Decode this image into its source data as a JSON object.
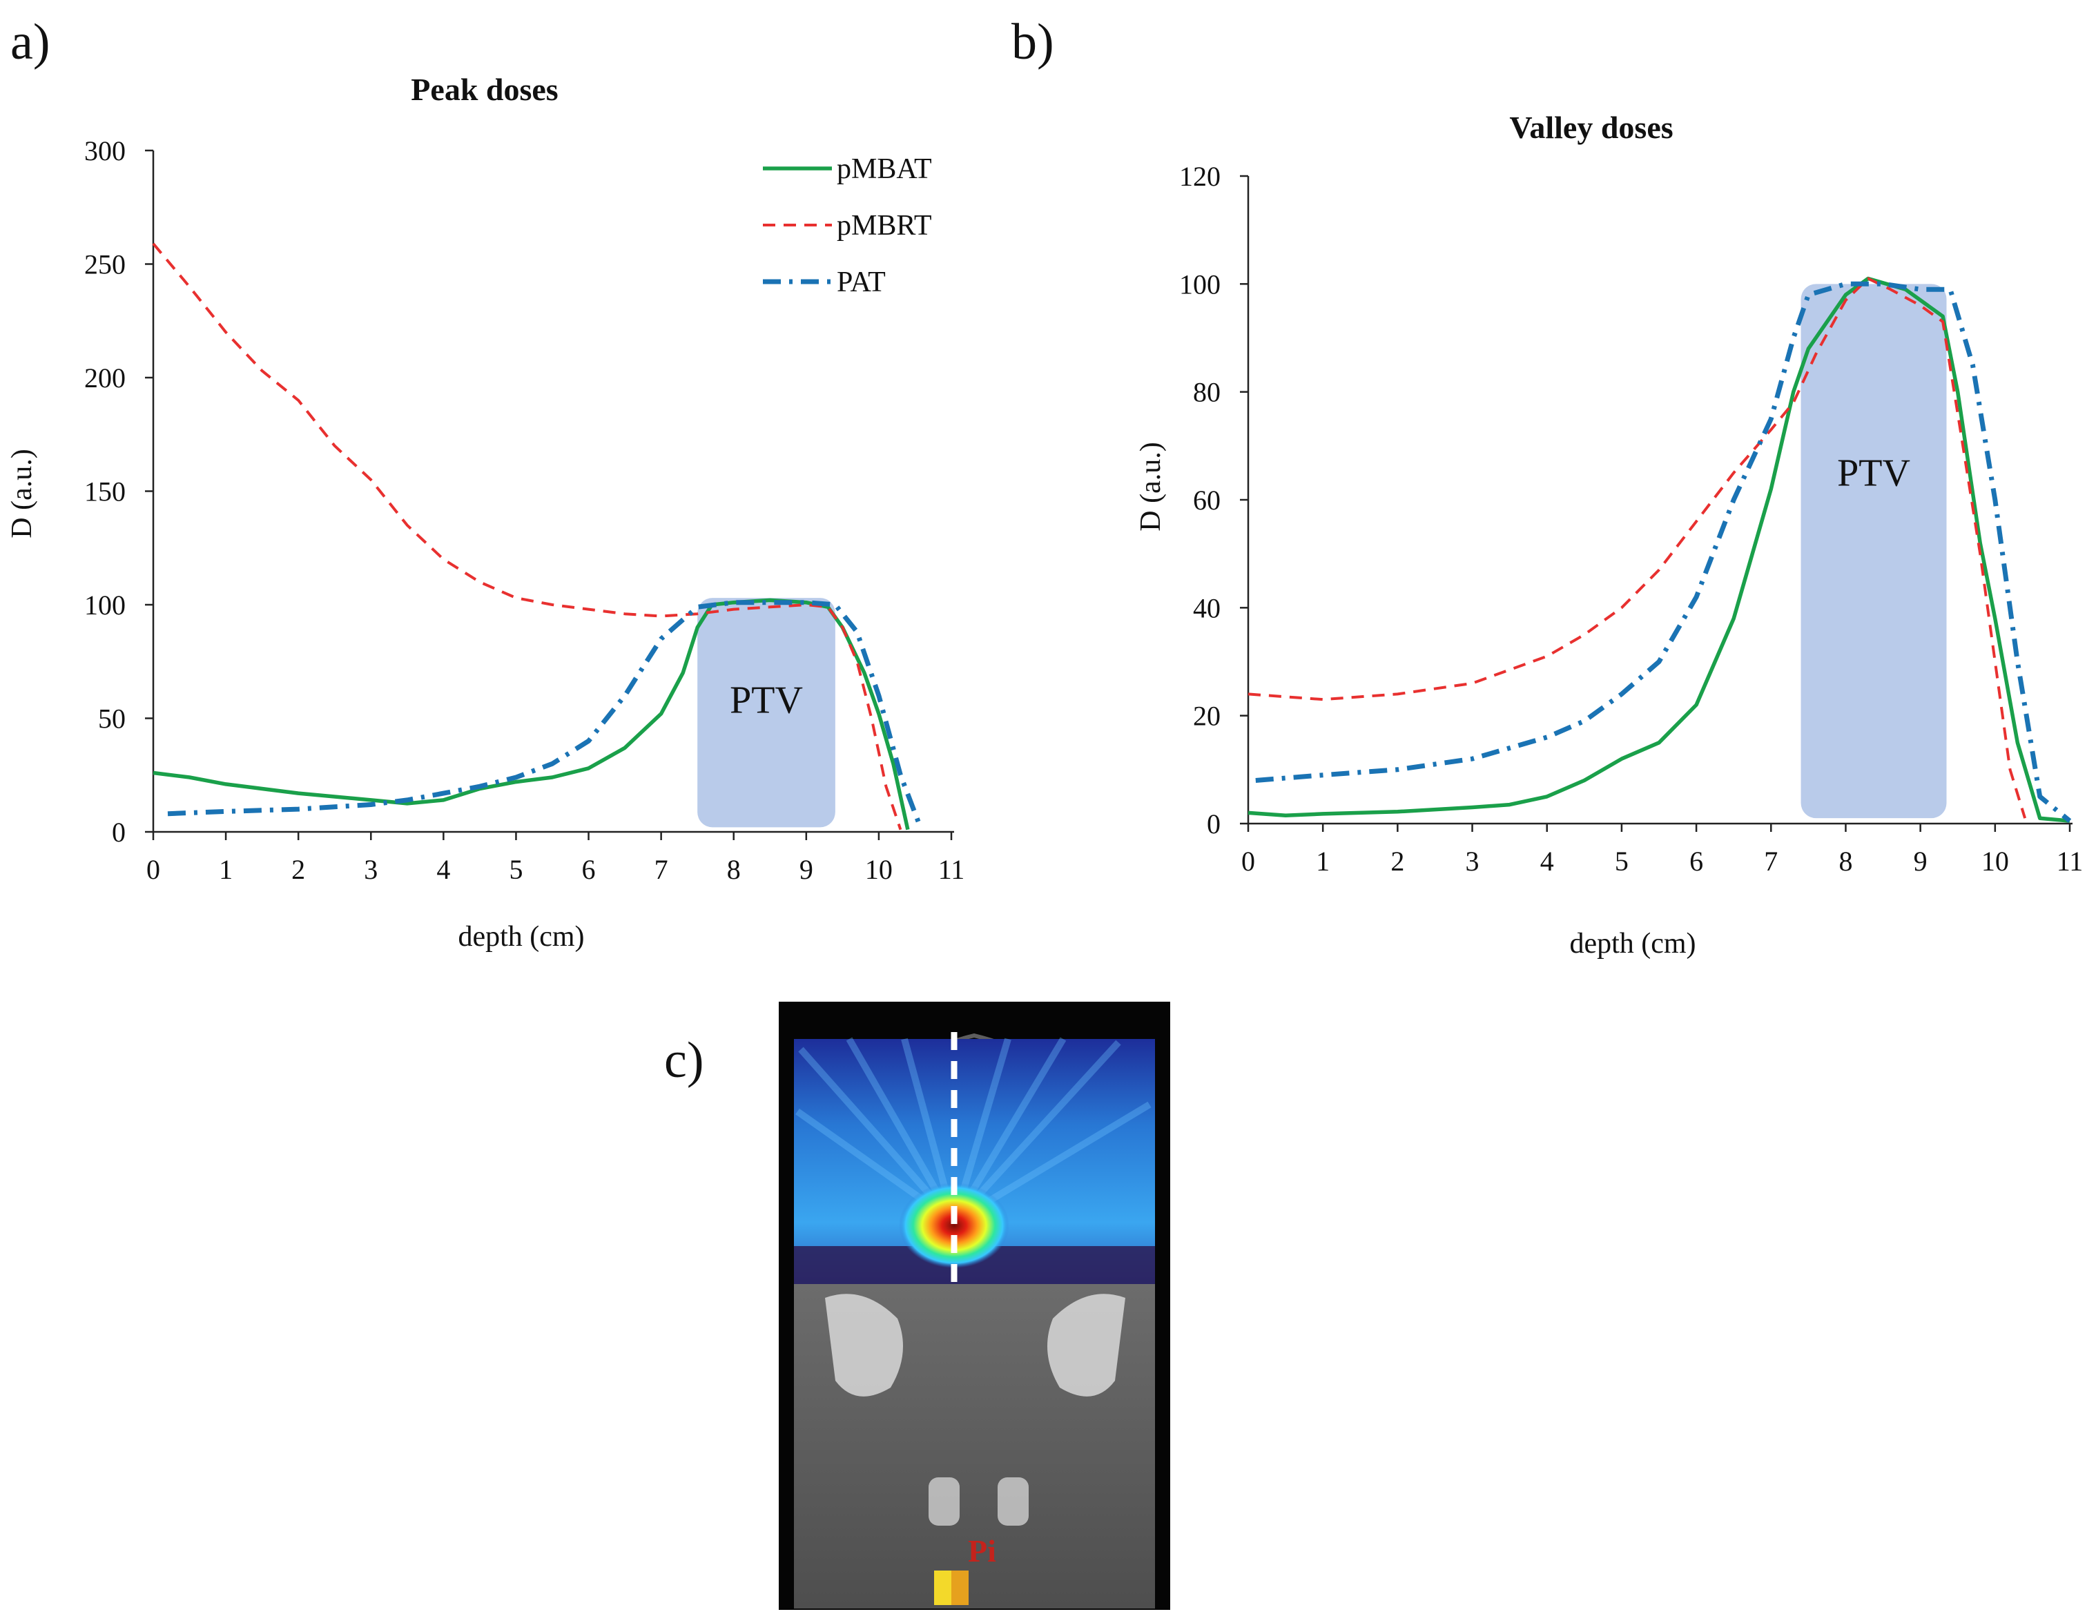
{
  "figure": {
    "panel_labels": [
      "a)",
      "b)",
      "c)"
    ],
    "colors": {
      "pMBAT": "#1aa04a",
      "pMBRT": "#e8302f",
      "PAT": "#1a73b4",
      "ptv_fill": "#b9cbea"
    },
    "ct_image": {
      "overlay_text": "Pi",
      "colors": [
        "#ffffff",
        "#2a7fd8",
        "#38e6ff",
        "#e3ff2b",
        "#e21f12",
        "#8a3b3b",
        "#f3d92a"
      ]
    }
  },
  "chart_data": [
    {
      "type": "line",
      "panel": "a)",
      "title": "Peak doses",
      "xlabel": "depth (cm)",
      "ylabel": "D (a.u.)",
      "xlim": [
        0,
        11
      ],
      "ylim": [
        0,
        300
      ],
      "xticks": [
        "0",
        "1",
        "2",
        "3",
        "4",
        "5",
        "6",
        "7",
        "8",
        "9",
        "10",
        "11"
      ],
      "yticks": [
        "0",
        "50",
        "100",
        "150",
        "200",
        "250",
        "300"
      ],
      "legend": [
        "pMBAT",
        "pMBRT",
        "PAT"
      ],
      "legend_position": "top-right",
      "region": {
        "label": "PTV",
        "x_start": 7.5,
        "x_end": 9.4,
        "y_start": 2,
        "y_end": 103
      },
      "series": [
        {
          "name": "pMBAT",
          "style": "solid",
          "points": [
            [
              0,
              26
            ],
            [
              0.5,
              24
            ],
            [
              1,
              21
            ],
            [
              2,
              17
            ],
            [
              3,
              14
            ],
            [
              3.5,
              12.5
            ],
            [
              4,
              14
            ],
            [
              4.5,
              19
            ],
            [
              5,
              22
            ],
            [
              5.5,
              24
            ],
            [
              6,
              28
            ],
            [
              6.5,
              37
            ],
            [
              7,
              52
            ],
            [
              7.3,
              70
            ],
            [
              7.5,
              90
            ],
            [
              7.7,
              100
            ],
            [
              8,
              101
            ],
            [
              8.5,
              102
            ],
            [
              9,
              101
            ],
            [
              9.3,
              99
            ],
            [
              9.5,
              90
            ],
            [
              9.8,
              70
            ],
            [
              10,
              52
            ],
            [
              10.2,
              30
            ],
            [
              10.4,
              1
            ]
          ]
        },
        {
          "name": "pMBRT",
          "style": "dashed",
          "points": [
            [
              0,
              259
            ],
            [
              0.5,
              240
            ],
            [
              1,
              220
            ],
            [
              1.5,
              203
            ],
            [
              2,
              190
            ],
            [
              2.5,
              170
            ],
            [
              3,
              155
            ],
            [
              3.5,
              135
            ],
            [
              4,
              120
            ],
            [
              4.5,
              110
            ],
            [
              5,
              103
            ],
            [
              5.5,
              100
            ],
            [
              6,
              98
            ],
            [
              6.5,
              96
            ],
            [
              7,
              95
            ],
            [
              7.5,
              96
            ],
            [
              8,
              98
            ],
            [
              8.5,
              99
            ],
            [
              9,
              100
            ],
            [
              9.3,
              99
            ],
            [
              9.5,
              90
            ],
            [
              9.7,
              75
            ],
            [
              9.9,
              50
            ],
            [
              10.1,
              20
            ],
            [
              10.3,
              1
            ]
          ]
        },
        {
          "name": "PAT",
          "style": "dashdot",
          "points": [
            [
              0.2,
              8
            ],
            [
              1,
              9
            ],
            [
              2,
              10
            ],
            [
              3,
              12
            ],
            [
              3.5,
              14
            ],
            [
              4,
              17
            ],
            [
              4.5,
              20
            ],
            [
              5,
              24
            ],
            [
              5.5,
              30
            ],
            [
              6,
              40
            ],
            [
              6.5,
              60
            ],
            [
              7,
              85
            ],
            [
              7.5,
              99
            ],
            [
              8,
              101
            ],
            [
              8.5,
              101
            ],
            [
              9,
              101
            ],
            [
              9.4,
              100
            ],
            [
              9.7,
              88
            ],
            [
              10,
              60
            ],
            [
              10.3,
              25
            ],
            [
              10.55,
              4
            ]
          ]
        }
      ]
    },
    {
      "type": "line",
      "panel": "b)",
      "title": "Valley doses",
      "xlabel": "depth (cm)",
      "ylabel": "D (a.u.)",
      "xlim": [
        0,
        11
      ],
      "ylim": [
        0,
        120
      ],
      "xticks": [
        "0",
        "1",
        "2",
        "3",
        "4",
        "5",
        "6",
        "7",
        "8",
        "9",
        "10",
        "11"
      ],
      "yticks": [
        "0",
        "20",
        "40",
        "60",
        "80",
        "100",
        "120"
      ],
      "region": {
        "label": "PTV",
        "x_start": 7.4,
        "x_end": 9.35,
        "y_start": 1,
        "y_end": 100
      },
      "series": [
        {
          "name": "pMBAT",
          "style": "solid",
          "points": [
            [
              0,
              2
            ],
            [
              0.5,
              1.5
            ],
            [
              1,
              1.8
            ],
            [
              2,
              2.2
            ],
            [
              3,
              3
            ],
            [
              3.5,
              3.5
            ],
            [
              4,
              5
            ],
            [
              4.5,
              8
            ],
            [
              5,
              12
            ],
            [
              5.5,
              15
            ],
            [
              6,
              22
            ],
            [
              6.5,
              38
            ],
            [
              7,
              62
            ],
            [
              7.3,
              80
            ],
            [
              7.5,
              88
            ],
            [
              8,
              98
            ],
            [
              8.3,
              101
            ],
            [
              8.8,
              99
            ],
            [
              9.3,
              94
            ],
            [
              9.5,
              80
            ],
            [
              9.8,
              52
            ],
            [
              10,
              38
            ],
            [
              10.3,
              15
            ],
            [
              10.6,
              1
            ],
            [
              11,
              0.5
            ]
          ]
        },
        {
          "name": "pMBRT",
          "style": "dashed",
          "points": [
            [
              0,
              24
            ],
            [
              1,
              23
            ],
            [
              2,
              24
            ],
            [
              3,
              26
            ],
            [
              4,
              31
            ],
            [
              4.5,
              35
            ],
            [
              5,
              40
            ],
            [
              5.5,
              47
            ],
            [
              6,
              56
            ],
            [
              6.5,
              65
            ],
            [
              7,
              73
            ],
            [
              7.3,
              78
            ],
            [
              7.6,
              87
            ],
            [
              8,
              97
            ],
            [
              8.3,
              101
            ],
            [
              8.6,
              99
            ],
            [
              9,
              96
            ],
            [
              9.3,
              93
            ],
            [
              9.5,
              76
            ],
            [
              9.8,
              50
            ],
            [
              10,
              30
            ],
            [
              10.2,
              10
            ],
            [
              10.4,
              1
            ]
          ]
        },
        {
          "name": "PAT",
          "style": "dashdot",
          "points": [
            [
              0.1,
              8
            ],
            [
              1,
              9
            ],
            [
              2,
              10
            ],
            [
              3,
              12
            ],
            [
              4,
              16
            ],
            [
              4.5,
              19
            ],
            [
              5,
              24
            ],
            [
              5.5,
              30
            ],
            [
              6,
              42
            ],
            [
              6.5,
              60
            ],
            [
              7,
              75
            ],
            [
              7.3,
              90
            ],
            [
              7.5,
              98
            ],
            [
              8,
              100
            ],
            [
              8.5,
              100
            ],
            [
              9,
              99
            ],
            [
              9.4,
              99
            ],
            [
              9.7,
              85
            ],
            [
              10,
              60
            ],
            [
              10.3,
              30
            ],
            [
              10.6,
              5
            ],
            [
              11,
              0.5
            ]
          ]
        }
      ]
    }
  ]
}
